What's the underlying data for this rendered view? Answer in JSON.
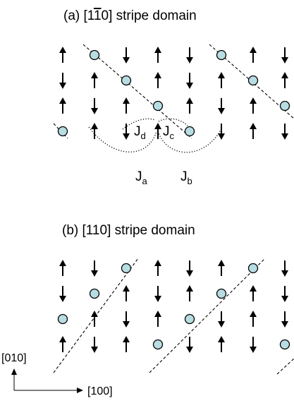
{
  "panel_a": {
    "title_prefix": "(a)  [1",
    "title_overbar": "1",
    "title_suffix": "0] stripe domain",
    "exchange_labels": {
      "a": {
        "main": "J",
        "sub": "a"
      },
      "b": {
        "main": "J",
        "sub": "b"
      },
      "c": {
        "main": "J",
        "sub": "c"
      },
      "d": {
        "main": "J",
        "sub": "d"
      }
    },
    "grid": [
      [
        "up",
        "vac",
        "down",
        "up",
        "down",
        "vac",
        "up",
        "down"
      ],
      [
        "down",
        "up",
        "vac",
        "up",
        "down",
        "up",
        "vac",
        "up"
      ],
      [
        "up",
        "down",
        "up",
        "vac",
        "up",
        "down",
        "up",
        "vac"
      ],
      [
        "vac",
        "up",
        "down",
        "up",
        "vac",
        "down",
        "up",
        "down"
      ]
    ]
  },
  "panel_b": {
    "title": "(b)  [110] stripe domain",
    "grid": [
      [
        "up",
        "down",
        "vac",
        "up",
        "down",
        "up",
        "vac",
        "down"
      ],
      [
        "down",
        "vac",
        "up",
        "down",
        "up",
        "vac",
        "up",
        "down"
      ],
      [
        "vac",
        "up",
        "down",
        "up",
        "vac",
        "down",
        "up",
        "down"
      ],
      [
        "up",
        "down",
        "up",
        "vac",
        "down",
        "up",
        "down",
        "vac"
      ]
    ]
  },
  "axes": {
    "vertical_label": "[010]",
    "horizontal_label": "[100]"
  }
}
